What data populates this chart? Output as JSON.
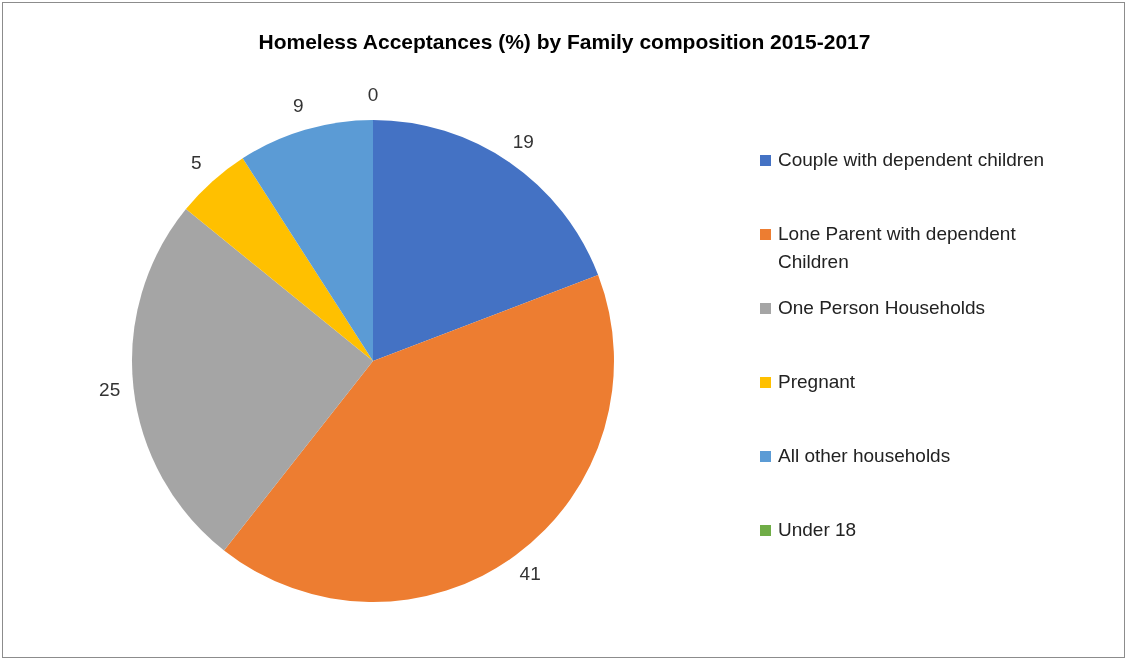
{
  "chart_data": {
    "type": "pie",
    "title": "Homeless Acceptances (%) by Family composition 2015-2017",
    "categories": [
      "Couple with dependent children",
      "Lone Parent with dependent Children",
      "One Person Households",
      "Pregnant",
      "All other households",
      "Under 18"
    ],
    "values": [
      19,
      41,
      25,
      5,
      9,
      0
    ],
    "colors": [
      "#4472c4",
      "#ed7d31",
      "#a5a5a5",
      "#ffc000",
      "#5b9bd5",
      "#70ad47"
    ],
    "value_labels": [
      "19",
      "41",
      "25",
      "5",
      "9",
      "0"
    ],
    "legend": "right"
  }
}
